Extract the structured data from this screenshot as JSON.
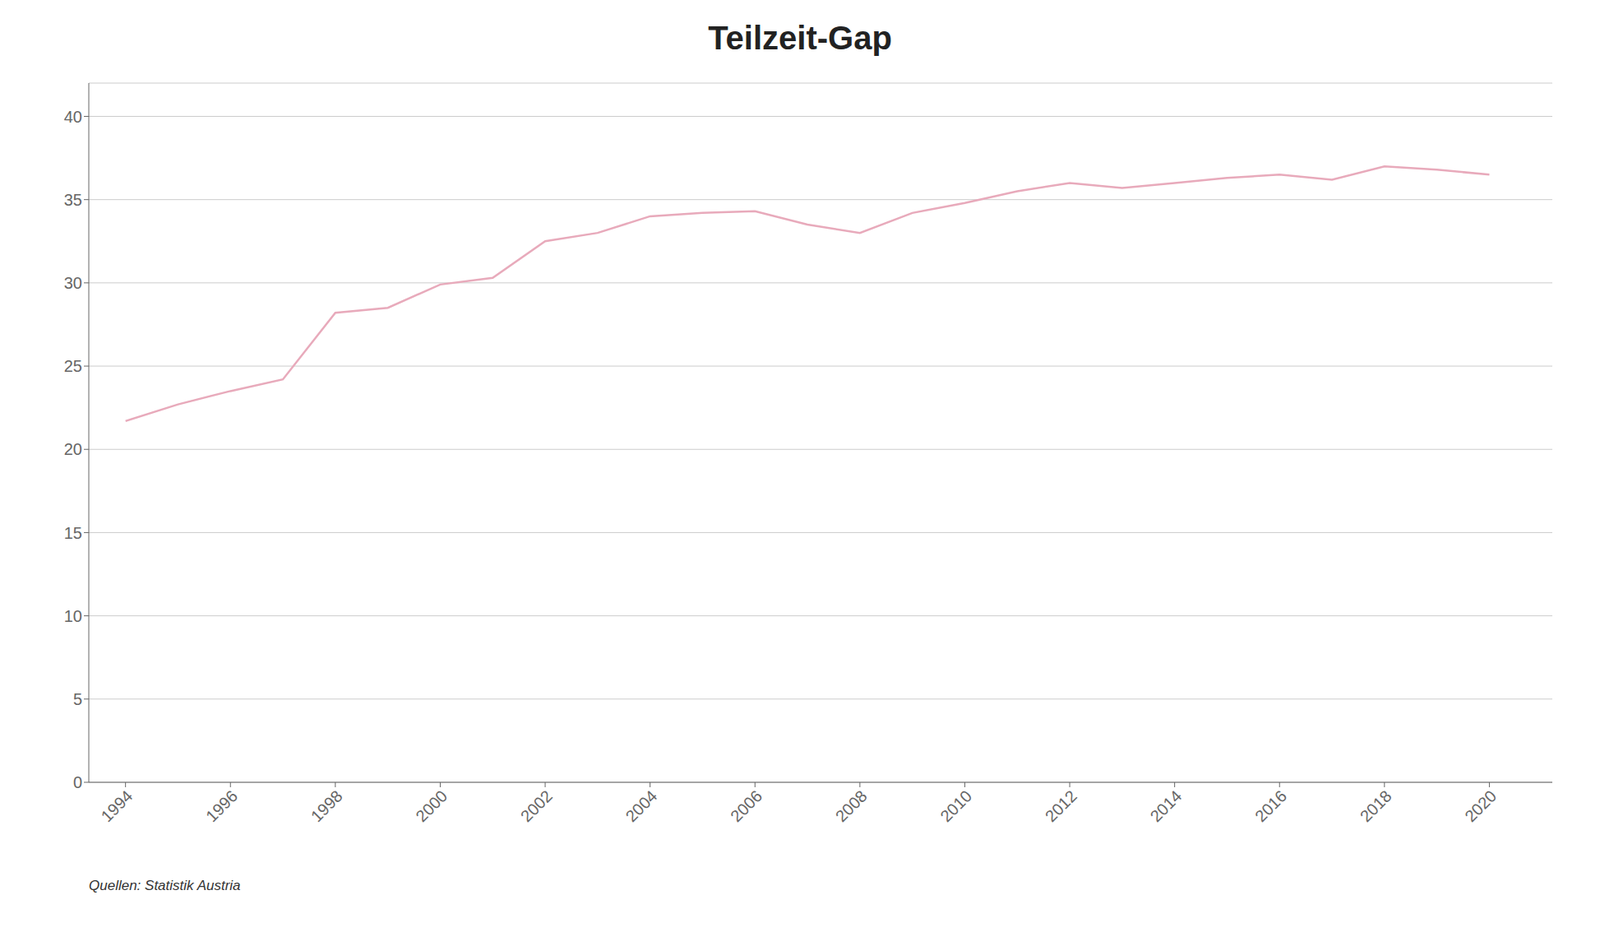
{
  "chart_data": {
    "type": "line",
    "title": "Teilzeit-Gap",
    "source": "Quellen: Statistik Austria",
    "x": [
      1994,
      1995,
      1996,
      1997,
      1998,
      1999,
      2000,
      2001,
      2002,
      2003,
      2004,
      2005,
      2006,
      2007,
      2008,
      2009,
      2010,
      2011,
      2012,
      2013,
      2014,
      2015,
      2016,
      2017,
      2018,
      2019,
      2020
    ],
    "values": [
      21.7,
      22.7,
      23.5,
      24.2,
      28.2,
      28.5,
      29.9,
      30.3,
      32.5,
      33.0,
      34.0,
      34.2,
      34.3,
      33.5,
      33.0,
      34.2,
      34.8,
      35.5,
      36.0,
      35.7,
      36.0,
      36.3,
      36.5,
      36.2,
      37.0,
      36.8,
      36.5
    ],
    "color": "#e8aabb",
    "xlim": [
      1993.3,
      2021.2
    ],
    "xticks": [
      1994,
      1996,
      1998,
      2000,
      2002,
      2004,
      2006,
      2008,
      2010,
      2012,
      2014,
      2016,
      2018,
      2020
    ],
    "ylim": [
      0,
      42
    ],
    "yticks": [
      0,
      5,
      10,
      15,
      20,
      25,
      30,
      35,
      40
    ],
    "grid": true
  }
}
